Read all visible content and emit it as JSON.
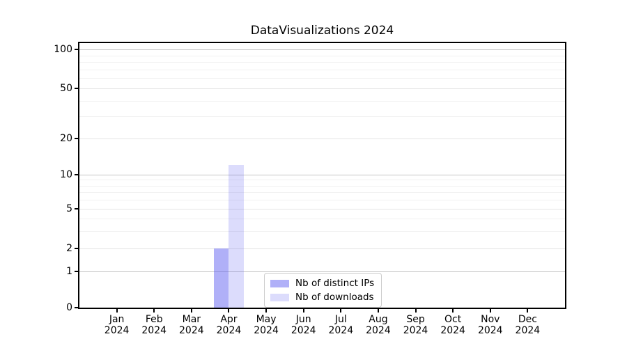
{
  "figure": {
    "background_color": "#ffffff",
    "text_color": "#000000"
  },
  "chart_data": {
    "type": "bar",
    "title": "DataVisualizations 2024",
    "xlabel": "",
    "ylabel": "",
    "categories": [
      "Jan",
      "Feb",
      "Mar",
      "Apr",
      "May",
      "Jun",
      "Jul",
      "Aug",
      "Sep",
      "Oct",
      "Nov",
      "Dec"
    ],
    "category_year": "2024",
    "series": [
      {
        "name": "Nb of distinct IPs",
        "color": "rgba(80,80,240,0.45)",
        "color_hex_on_white": "#aaaaf7",
        "values": [
          0,
          0,
          0,
          2,
          0,
          0,
          0,
          0,
          0,
          0,
          0,
          0
        ]
      },
      {
        "name": "Nb of downloads",
        "color": "rgba(80,80,240,0.20)",
        "color_hex_on_white": "#dcdcfb",
        "values": [
          0,
          0,
          0,
          12,
          0,
          0,
          0,
          0,
          0,
          0,
          0,
          0
        ]
      }
    ],
    "yscale": "symlog",
    "yticks": [
      0,
      1,
      2,
      5,
      10,
      20,
      50,
      100
    ],
    "minor_yticks": [
      3,
      4,
      6,
      7,
      8,
      9,
      30,
      40,
      60,
      70,
      80,
      90
    ],
    "ylim": [
      0,
      110
    ],
    "grid": true,
    "legend_position": "lower-center"
  }
}
